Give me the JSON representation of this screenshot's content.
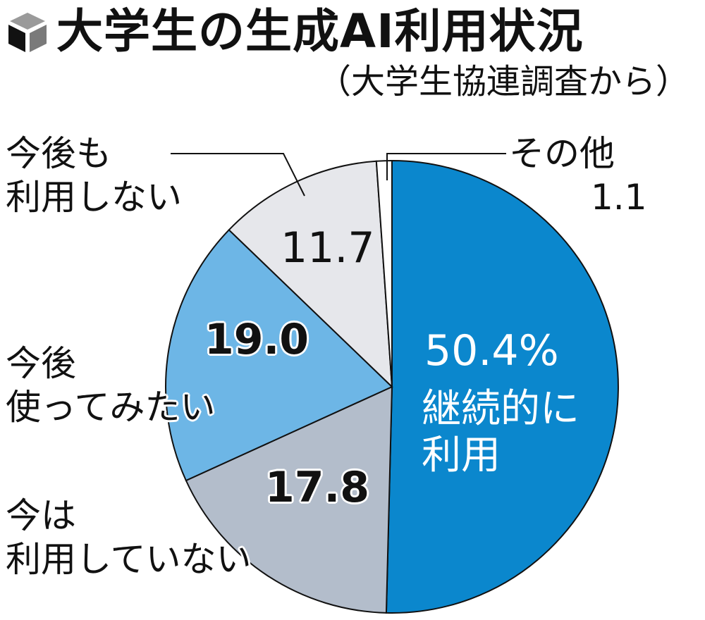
{
  "header": {
    "title": "大学生の生成AI利用状況",
    "subtitle": "（大学生協連調査から）",
    "icon": "cube-icon"
  },
  "colors": {
    "continued_use": "#0b87cd",
    "not_now": "#b3bdcb",
    "want_to_try": "#6db6e6",
    "never": "#e6e7eb",
    "other": "#ffffff",
    "outline": "#111111"
  },
  "chart_data": {
    "type": "pie",
    "title": "大学生の生成AI利用状況",
    "subtitle": "（大学生協連調査から）",
    "unit": "%",
    "start_angle_deg": 0,
    "direction": "clockwise",
    "legend": "direct labels",
    "slices": [
      {
        "key": "continued_use",
        "label": "継続的に利用",
        "value": 50.4,
        "value_label": "50.4%",
        "color": "#0b87cd"
      },
      {
        "key": "not_now",
        "label": "今は利用していない",
        "value": 17.8,
        "value_label": "17.8",
        "color": "#b3bdcb"
      },
      {
        "key": "want_to_try",
        "label": "今後使ってみたい",
        "value": 19.0,
        "value_label": "19.0",
        "color": "#6db6e6"
      },
      {
        "key": "never",
        "label": "今後も利用しない",
        "value": 11.7,
        "value_label": "11.7",
        "color": "#e6e7eb"
      },
      {
        "key": "other",
        "label": "その他",
        "value": 1.1,
        "value_label": "1.1",
        "color": "#ffffff"
      }
    ]
  },
  "labels": {
    "continued_use": {
      "line1": "継続的に",
      "line2": "利用",
      "value": "50.4%"
    },
    "not_now": {
      "line1": "今は",
      "line2": "利用していない",
      "value": "17.8"
    },
    "want_to_try": {
      "line1": "今後",
      "line2": "使ってみたい",
      "value": "19.0"
    },
    "never": {
      "line1": "今後も",
      "line2": "利用しない",
      "value": "11.7"
    },
    "other": {
      "line1": "その他",
      "value": "1.1"
    }
  }
}
